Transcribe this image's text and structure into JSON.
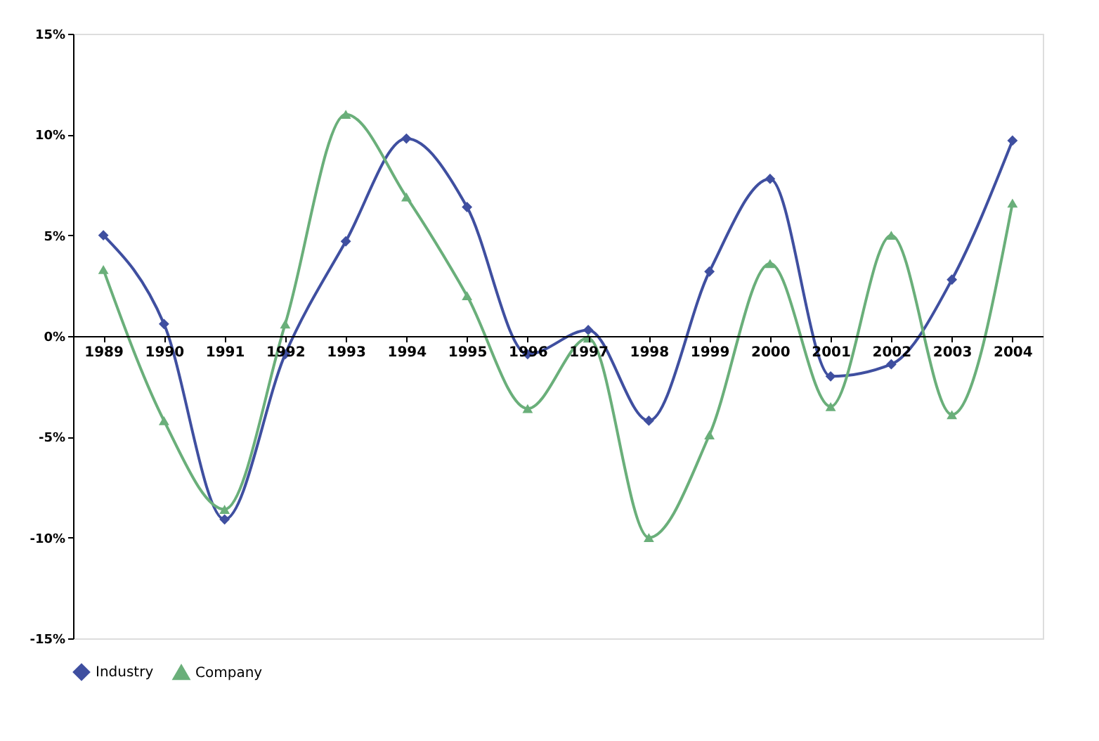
{
  "chart_data": {
    "type": "line",
    "categories": [
      "1989",
      "1990",
      "1991",
      "1992",
      "1993",
      "1994",
      "1995",
      "1996",
      "1997",
      "1998",
      "1999",
      "2000",
      "2001",
      "2002",
      "2003",
      "2004"
    ],
    "series": [
      {
        "name": "Industry",
        "color": "#3f4fa0",
        "marker": "diamond",
        "values": [
          5.0,
          0.6,
          -9.1,
          -0.9,
          4.7,
          9.8,
          6.4,
          -0.9,
          0.3,
          -4.2,
          3.2,
          7.8,
          -2.0,
          -1.4,
          2.8,
          9.7
        ]
      },
      {
        "name": "Company",
        "color": "#6aaf7a",
        "marker": "triangle",
        "values": [
          3.3,
          -4.2,
          -8.6,
          0.6,
          11.0,
          6.9,
          2.0,
          -3.6,
          -0.1,
          -10.0,
          -4.9,
          3.6,
          -3.5,
          5.0,
          -3.9,
          6.6
        ]
      }
    ],
    "ylim": [
      -15,
      15
    ],
    "yticks": [
      {
        "value": -15,
        "label": "-15%"
      },
      {
        "value": -10,
        "label": "-10%"
      },
      {
        "value": -5,
        "label": "-5%"
      },
      {
        "value": 0,
        "label": "0%"
      },
      {
        "value": 5,
        "label": "5%"
      },
      {
        "value": 10,
        "label": "10%"
      },
      {
        "value": 15,
        "label": "15%"
      }
    ],
    "grid": false,
    "legend": "bottom",
    "line_style": "solid"
  }
}
